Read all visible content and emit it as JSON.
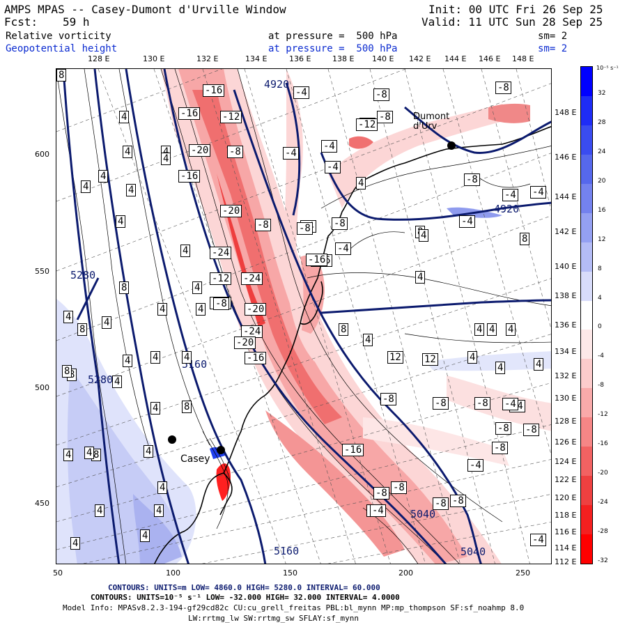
{
  "header": {
    "title": "AMPS MPAS -- Casey-Dumont d'Urville Window",
    "init": "Init: 00 UTC Fri 26 Sep 25",
    "fcst_label": "Fcst:",
    "fcst_hours": "59 h",
    "valid": "Valid: 11 UTC Sun 28 Sep 25"
  },
  "fields": [
    {
      "name": "Relative vorticity",
      "level": "at pressure =  500 hPa",
      "smooth": "sm= 2",
      "color": "#000000"
    },
    {
      "name": "Geopotential height",
      "level": "at pressure =  500 hPa",
      "smooth": "sm= 2",
      "color": "#0a2ad0"
    }
  ],
  "lon_labels": [
    "128 E",
    "130 E",
    "132 E",
    "134 E",
    "136 E",
    "138 E",
    "140 E",
    "142 E",
    "144 E",
    "146 E",
    "148 E"
  ],
  "lat_labels": [
    "148 E",
    "146 E",
    "144 E",
    "142 E",
    "140 E",
    "138 E",
    "136 E",
    "134 E",
    "132 E",
    "130 E",
    "128 E",
    "126 E",
    "124 E",
    "122 E",
    "120 E",
    "118 E",
    "116 E",
    "114 E",
    "112 E"
  ],
  "x_ticks": [
    "50",
    "100",
    "150",
    "200",
    "250"
  ],
  "y_ticks": [
    "600",
    "550",
    "500",
    "450"
  ],
  "colorbar": {
    "unit": "10⁻⁵ s⁻¹",
    "labels": [
      "32",
      "28",
      "24",
      "20",
      "16",
      "12",
      "8",
      "4",
      "0",
      "-4",
      "-8",
      "-12",
      "-16",
      "-20",
      "-24",
      "-28",
      "-32"
    ],
    "colors": [
      "#0000ff",
      "#1e2cf6",
      "#3a4cf0",
      "#5668ec",
      "#7482ee",
      "#94a0f2",
      "#b4bcf6",
      "#d8dcfa",
      "#ffffff",
      "#fde8e8",
      "#fccccc",
      "#f9aaaa",
      "#f68686",
      "#f26262",
      "#ee4040",
      "#f42020",
      "#ff0000"
    ]
  },
  "places": {
    "casey": "Casey",
    "dumont": "Dumont\nd'Urv"
  },
  "height_contour_labels": [
    "4920",
    "5280",
    "5280",
    "5160",
    "5160",
    "5040",
    "5040",
    "4920"
  ],
  "vort_labels": [
    "-16",
    "-16",
    "-12",
    "-20",
    "-8",
    "-16",
    "-20",
    "-24",
    "-12",
    "-24",
    "-20",
    "-24",
    "-16",
    "-20",
    "-12",
    "-16",
    "-8",
    "-8",
    "-8",
    "-4",
    "-4",
    "-4",
    "-4",
    "-4",
    "-4",
    "-8",
    "-12",
    "-8",
    "-16",
    "-4",
    "-8",
    "-8",
    "-8",
    "-8",
    "-8",
    "-8",
    "-8",
    "-8",
    "-4",
    "-4",
    "-8",
    "-4",
    "-4",
    "-16",
    "-8",
    "-8",
    "-4",
    "-8",
    "-4",
    "-4",
    "-8",
    "-4",
    "-4",
    "4",
    "4",
    "4",
    "4",
    "4",
    "4",
    "4",
    "4",
    "4",
    "4",
    "8",
    "4",
    "4",
    "4",
    "4",
    "4",
    "8",
    "4",
    "8",
    "8",
    "4",
    "4",
    "4",
    "8",
    "4",
    "8",
    "4",
    "4",
    "4",
    "4",
    "4",
    "4",
    "4",
    "4",
    "8",
    "4",
    "8",
    "12",
    "12",
    "4",
    "4",
    "4",
    "4",
    "4",
    "8",
    "4",
    "4",
    "4",
    "8",
    "4",
    "4",
    "8"
  ],
  "footer": {
    "line1": "CONTOURS:  UNITS=m  LOW=  4860.0        HIGH=  5280.0       INTERVAL=   60.000",
    "line2": "CONTOURS:  UNITS=10⁻⁵ s⁻¹  LOW=  -32.000       HIGH=  32.000       INTERVAL=   4.0000",
    "line3": "Model Info: MPASv8.2.3-194-gf29cd82c CU:cu_grell_freitas PBL:bl_mynn MP:mp_thompson SF:sf_noahmp 8.0",
    "line4": "LW:rrtmg_lw SW:rrtmg_sw SFLAY:sf_mynn"
  }
}
